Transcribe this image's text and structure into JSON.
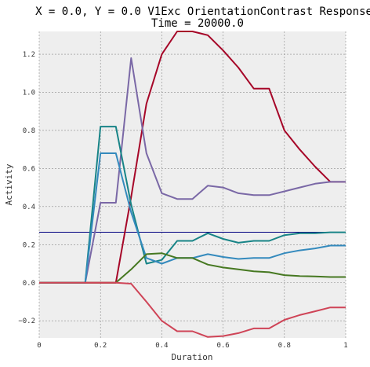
{
  "chart_data": {
    "type": "line",
    "title": "X = 0.0, Y = 0.0 V1Exc OrientationContrast Response",
    "subtitle": "Time = 20000.0",
    "xlabel": "Duration",
    "ylabel": "Activity",
    "xlim": [
      0,
      1
    ],
    "ylim": [
      -0.29,
      1.32
    ],
    "xticks": [
      0,
      0.2,
      0.4,
      0.6,
      0.8,
      1
    ],
    "xtick_labels": [
      "0",
      "0.2",
      "0.4",
      "0.6",
      "0.8",
      "1"
    ],
    "yticks": [
      -0.2,
      0.0,
      0.2,
      0.4,
      0.6,
      0.8,
      1.0,
      1.2
    ],
    "ytick_labels": [
      "−0.2",
      "0.0",
      "0.2",
      "0.4",
      "0.6",
      "0.8",
      "1.0",
      "1.2"
    ],
    "grid": true,
    "background": "#eeeeee",
    "hline": {
      "y": 0.265,
      "color": "#000080"
    },
    "x": [
      0,
      0.05,
      0.1,
      0.15,
      0.2,
      0.25,
      0.3,
      0.35,
      0.4,
      0.45,
      0.5,
      0.55,
      0.6,
      0.65,
      0.7,
      0.75,
      0.8,
      0.85,
      0.9,
      0.95,
      1.0
    ],
    "series": [
      {
        "color": "#a60628",
        "values": [
          0,
          0,
          0,
          0,
          0,
          0,
          0.45,
          0.94,
          1.2,
          1.32,
          1.32,
          1.3,
          1.22,
          1.13,
          1.02,
          1.02,
          0.8,
          0.7,
          0.61,
          0.53,
          0.53
        ]
      },
      {
        "color": "#7a68a6",
        "values": [
          0,
          0,
          0,
          0,
          0.42,
          0.42,
          1.18,
          0.68,
          0.47,
          0.44,
          0.44,
          0.51,
          0.5,
          0.47,
          0.46,
          0.46,
          0.48,
          0.5,
          0.52,
          0.53,
          0.53
        ]
      },
      {
        "color": "#188487",
        "values": [
          0,
          0,
          0,
          0,
          0.82,
          0.82,
          0.41,
          0.1,
          0.12,
          0.22,
          0.22,
          0.26,
          0.23,
          0.21,
          0.22,
          0.22,
          0.25,
          0.26,
          0.26,
          0.265,
          0.265
        ]
      },
      {
        "color": "#348abd",
        "values": [
          0,
          0,
          0,
          0,
          0.68,
          0.68,
          0.37,
          0.13,
          0.1,
          0.13,
          0.13,
          0.15,
          0.135,
          0.125,
          0.13,
          0.13,
          0.155,
          0.17,
          0.18,
          0.195,
          0.195
        ]
      },
      {
        "color": "#467821",
        "values": [
          0,
          0,
          0,
          0,
          0,
          0,
          0.07,
          0.15,
          0.155,
          0.13,
          0.13,
          0.095,
          0.08,
          0.07,
          0.06,
          0.055,
          0.04,
          0.035,
          0.033,
          0.03,
          0.03
        ]
      },
      {
        "color": "#cf4457",
        "values": [
          0,
          0,
          0,
          0,
          0,
          0,
          -0.005,
          -0.1,
          -0.2,
          -0.255,
          -0.255,
          -0.285,
          -0.28,
          -0.265,
          -0.24,
          -0.24,
          -0.195,
          -0.17,
          -0.15,
          -0.13,
          -0.13
        ]
      }
    ]
  }
}
